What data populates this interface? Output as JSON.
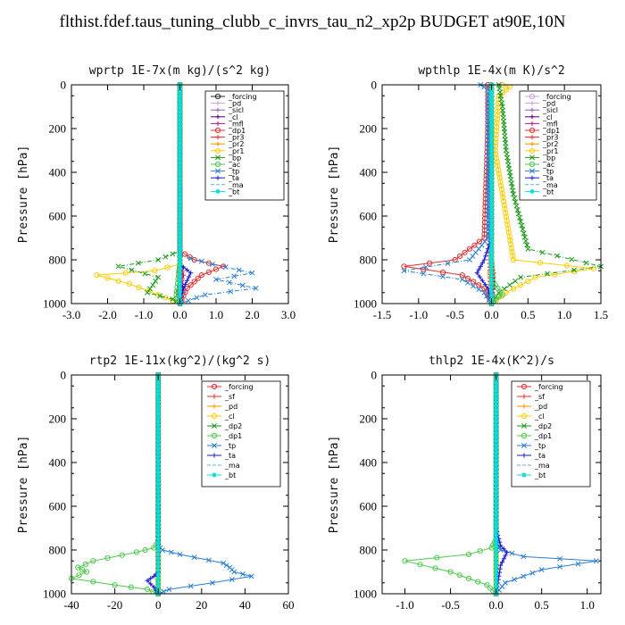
{
  "figure_title": "flthist.fdef.taus_tuning_clubb_c_invrs_tau_n2_xp2p  BUDGET at90E,10N",
  "chart_data": [
    {
      "type": "line",
      "title": "wprtp  1E-7x(m kg)/(s^2 kg)",
      "ylabel": "Pressure [hPa]",
      "xlim": [
        -3,
        3
      ],
      "ylim": [
        1000,
        0
      ],
      "xticks": [
        -3,
        -2,
        -1,
        0,
        1,
        2,
        3
      ],
      "xtick_labels": [
        "-3.0",
        "-2.0",
        "-1.0",
        "0.0",
        "1.0",
        "2.0",
        "3.0"
      ],
      "yticks": [
        0,
        200,
        400,
        600,
        800,
        1000
      ],
      "grid": false,
      "legend_position": "top-right",
      "series": [
        {
          "name": "_forcing",
          "color": "#222222",
          "marker": "o",
          "x": [
            0,
            0
          ],
          "y": [
            0,
            1000
          ]
        },
        {
          "name": "_pd",
          "color": "#c8a0d8",
          "marker": "+",
          "x": [
            0,
            0,
            0
          ],
          "y": [
            0,
            900,
            1000
          ]
        },
        {
          "name": "_sicl",
          "color": "#9b59b6",
          "marker": "+",
          "x": [
            0,
            0,
            0.05,
            0
          ],
          "y": [
            0,
            850,
            920,
            1000
          ]
        },
        {
          "name": "_cl",
          "color": "#4b0082",
          "marker": "+",
          "x": [
            0,
            0,
            0.05,
            0.08,
            0
          ],
          "y": [
            0,
            800,
            880,
            940,
            1000
          ]
        },
        {
          "name": "_mfl",
          "color": "#c71585",
          "marker": "+",
          "x": [
            0,
            0,
            0.1,
            -0.1,
            0
          ],
          "y": [
            0,
            820,
            870,
            950,
            1000
          ]
        },
        {
          "name": "_dp1",
          "color": "#e03030",
          "marker": "o",
          "x": [
            0,
            0,
            0.4,
            1.2,
            0.6,
            0.2,
            0
          ],
          "y": [
            0,
            760,
            800,
            830,
            870,
            930,
            1000
          ]
        },
        {
          "name": "_pr3",
          "color": "#ff2020",
          "marker": "+",
          "x": [
            0,
            0,
            0.05,
            0
          ],
          "y": [
            0,
            800,
            860,
            1000
          ]
        },
        {
          "name": "_pr2",
          "color": "#ff8c00",
          "marker": "+",
          "x": [
            0,
            0,
            -0.05,
            0
          ],
          "y": [
            0,
            800,
            860,
            1000
          ]
        },
        {
          "name": "_pr1",
          "color": "#ffcc00",
          "marker": "o",
          "x": [
            0,
            0,
            -0.7,
            -2.3,
            -1.4,
            -0.6,
            0
          ],
          "y": [
            0,
            820,
            850,
            870,
            910,
            960,
            1000
          ]
        },
        {
          "name": "_bp",
          "color": "#1a9a1a",
          "marker": "x",
          "x": [
            0,
            0,
            -0.6,
            -1.7,
            -0.6,
            -0.9,
            -0.2,
            0
          ],
          "y": [
            0,
            760,
            800,
            830,
            880,
            950,
            980,
            1000
          ]
        },
        {
          "name": "_ac",
          "color": "#4cc94c",
          "marker": "o",
          "x": [
            0,
            0,
            -0.1,
            0
          ],
          "y": [
            0,
            820,
            960,
            1000
          ]
        },
        {
          "name": "_tp",
          "color": "#2a7fd0",
          "marker": "x",
          "x": [
            0,
            0,
            0.9,
            2.0,
            1.0,
            2.1,
            0.7,
            0
          ],
          "y": [
            0,
            780,
            820,
            860,
            890,
            930,
            960,
            1000
          ]
        },
        {
          "name": "_ta",
          "color": "#1a1acc",
          "marker": "+",
          "x": [
            0,
            0,
            0.3,
            0.1,
            0
          ],
          "y": [
            0,
            820,
            860,
            930,
            1000
          ]
        },
        {
          "name": "_ma",
          "color": "#5ab4dc",
          "marker": "-",
          "x": [
            0,
            0,
            0.05,
            0
          ],
          "y": [
            0,
            800,
            900,
            1000
          ]
        },
        {
          "name": "_bt",
          "color": "#00e0e0",
          "marker": "*",
          "x": [
            0,
            0
          ],
          "y": [
            0,
            1000
          ]
        }
      ]
    },
    {
      "type": "line",
      "title": "wpthlp  1E-4x(m K)/s^2",
      "ylabel": "Pressure [hPa]",
      "xlim": [
        -1.5,
        1.5
      ],
      "ylim": [
        1000,
        0
      ],
      "xticks": [
        -1.5,
        -1.0,
        -0.5,
        0,
        0.5,
        1.0,
        1.5
      ],
      "xtick_labels": [
        "-1.5",
        "-1.0",
        "-0.5",
        "0.0",
        "0.5",
        "1.0",
        "1.5"
      ],
      "yticks": [
        0,
        200,
        400,
        600,
        800,
        1000
      ],
      "grid": false,
      "legend_position": "top-right",
      "series": [
        {
          "name": "_forcing",
          "color": "#c8a0d8",
          "marker": "o",
          "x": [
            0,
            0
          ],
          "y": [
            0,
            1000
          ]
        },
        {
          "name": "_pd",
          "color": "#c8a0d8",
          "marker": "+",
          "x": [
            0,
            0
          ],
          "y": [
            0,
            1000
          ]
        },
        {
          "name": "_sicl",
          "color": "#9b59b6",
          "marker": "+",
          "x": [
            0,
            0,
            0.02,
            0
          ],
          "y": [
            0,
            850,
            920,
            1000
          ]
        },
        {
          "name": "_cl",
          "color": "#4b0082",
          "marker": "+",
          "x": [
            0,
            0,
            0.03,
            0
          ],
          "y": [
            0,
            800,
            900,
            1000
          ]
        },
        {
          "name": "_mfl",
          "color": "#c71585",
          "marker": "+",
          "x": [
            -0.02,
            -0.03,
            -0.03,
            0
          ],
          "y": [
            0,
            300,
            800,
            1000
          ]
        },
        {
          "name": "_dp1",
          "color": "#e03030",
          "marker": "o",
          "x": [
            -0.05,
            -0.05,
            -0.1,
            -0.5,
            -1.2,
            -0.4,
            -0.1,
            0
          ],
          "y": [
            0,
            200,
            700,
            800,
            830,
            870,
            930,
            1000
          ]
        },
        {
          "name": "_pr3",
          "color": "#ff2020",
          "marker": "+",
          "x": [
            0,
            0,
            0.03,
            0
          ],
          "y": [
            0,
            800,
            860,
            1000
          ]
        },
        {
          "name": "_pr2",
          "color": "#ff8c00",
          "marker": "+",
          "x": [
            0,
            0,
            -0.03,
            0
          ],
          "y": [
            0,
            800,
            860,
            1000
          ]
        },
        {
          "name": "_pr1",
          "color": "#ffcc00",
          "marker": "o",
          "x": [
            0.15,
            0.25,
            0.1,
            0.05,
            0.3,
            1.4,
            0.6,
            0.2,
            0
          ],
          "y": [
            0,
            10,
            50,
            300,
            800,
            840,
            880,
            950,
            1000
          ]
        },
        {
          "name": "_bp",
          "color": "#1a9a1a",
          "marker": "x",
          "x": [
            0.1,
            0.15,
            0.2,
            0.3,
            0.5,
            1.5,
            0.4,
            0.1,
            0
          ],
          "y": [
            0,
            100,
            300,
            500,
            750,
            830,
            880,
            950,
            1000
          ]
        },
        {
          "name": "_ac",
          "color": "#4cc94c",
          "marker": "o",
          "x": [
            0,
            0,
            0.02,
            0.15,
            0.05,
            0
          ],
          "y": [
            0,
            800,
            900,
            960,
            980,
            1000
          ]
        },
        {
          "name": "_tp",
          "color": "#2a7fd0",
          "marker": "x",
          "x": [
            -0.15,
            -0.05,
            -0.05,
            -0.3,
            -1.2,
            -0.4,
            -0.1,
            0
          ],
          "y": [
            0,
            20,
            700,
            800,
            850,
            890,
            950,
            1000
          ]
        },
        {
          "name": "_ta",
          "color": "#1a1acc",
          "marker": "+",
          "x": [
            0,
            0,
            -0.1,
            -0.2,
            -0.05,
            0
          ],
          "y": [
            0,
            700,
            800,
            860,
            930,
            1000
          ]
        },
        {
          "name": "_ma",
          "color": "#5ab4dc",
          "marker": "-",
          "x": [
            -0.1,
            -0.05,
            0,
            0
          ],
          "y": [
            0,
            30,
            100,
            1000
          ]
        },
        {
          "name": "_bt",
          "color": "#00e0e0",
          "marker": "*",
          "x": [
            0,
            0
          ],
          "y": [
            0,
            1000
          ]
        }
      ]
    },
    {
      "type": "line",
      "title": "rtp2  1E-11x(kg^2)/(kg^2 s)",
      "ylabel": "Pressure [hPa]",
      "xlim": [
        -40,
        60
      ],
      "ylim": [
        1000,
        0
      ],
      "xticks": [
        -40,
        -20,
        0,
        20,
        40,
        60
      ],
      "xtick_labels": [
        "-40",
        "-20",
        "0",
        "20",
        "40",
        "60"
      ],
      "yticks": [
        0,
        200,
        400,
        600,
        800,
        1000
      ],
      "grid": false,
      "legend_position": "top-right",
      "series": [
        {
          "name": "_forcing",
          "color": "#e03030",
          "marker": "o",
          "x": [
            0,
            0
          ],
          "y": [
            0,
            1000
          ]
        },
        {
          "name": "_sf",
          "color": "#ff2020",
          "marker": "+",
          "x": [
            0,
            0
          ],
          "y": [
            0,
            1000
          ]
        },
        {
          "name": "_pd",
          "color": "#ff8c00",
          "marker": "+",
          "x": [
            0,
            0
          ],
          "y": [
            0,
            1000
          ]
        },
        {
          "name": "_cl",
          "color": "#ffcc00",
          "marker": "o",
          "x": [
            0,
            0
          ],
          "y": [
            0,
            1000
          ]
        },
        {
          "name": "_dp2",
          "color": "#1a9a1a",
          "marker": "x",
          "x": [
            0,
            0
          ],
          "y": [
            0,
            1000
          ]
        },
        {
          "name": "_dp1",
          "color": "#4cc94c",
          "marker": "o",
          "x": [
            0,
            0,
            -2,
            -10,
            -30,
            -37,
            -33,
            -40,
            -20,
            -5,
            0
          ],
          "y": [
            0,
            760,
            790,
            810,
            850,
            880,
            900,
            930,
            960,
            980,
            1000
          ]
        },
        {
          "name": "_tp",
          "color": "#2a7fd0",
          "marker": "x",
          "x": [
            0,
            0,
            2,
            10,
            30,
            33,
            35,
            43,
            25,
            5,
            0
          ],
          "y": [
            0,
            780,
            800,
            820,
            860,
            880,
            900,
            920,
            950,
            980,
            1000
          ]
        },
        {
          "name": "_ta",
          "color": "#1a1acc",
          "marker": "+",
          "x": [
            0,
            0,
            -2,
            -5,
            -2,
            0
          ],
          "y": [
            0,
            900,
            920,
            940,
            970,
            1000
          ]
        },
        {
          "name": "_ma",
          "color": "#5ab4dc",
          "marker": "-",
          "x": [
            0,
            0
          ],
          "y": [
            0,
            1000
          ]
        },
        {
          "name": "_bt",
          "color": "#00e0e0",
          "marker": "*",
          "x": [
            0,
            0
          ],
          "y": [
            0,
            1000
          ]
        }
      ]
    },
    {
      "type": "line",
      "title": "thlp2  1E-4x(K^2)/s",
      "ylabel": "Pressure [hPa]",
      "xlim": [
        -1.25,
        1.15
      ],
      "ylim": [
        1000,
        0
      ],
      "xticks": [
        -1.0,
        -0.5,
        0,
        0.5,
        1.0
      ],
      "xtick_labels": [
        "-1.0",
        "-0.5",
        "0.0",
        "0.5",
        "1.0"
      ],
      "yticks": [
        0,
        200,
        400,
        600,
        800,
        1000
      ],
      "grid": false,
      "legend_position": "top-right",
      "series": [
        {
          "name": "_forcing",
          "color": "#e03030",
          "marker": "o",
          "x": [
            0,
            0
          ],
          "y": [
            0,
            1000
          ]
        },
        {
          "name": "_sf",
          "color": "#ff2020",
          "marker": "+",
          "x": [
            0,
            0
          ],
          "y": [
            0,
            1000
          ]
        },
        {
          "name": "_pd",
          "color": "#ff8c00",
          "marker": "+",
          "x": [
            0,
            0
          ],
          "y": [
            0,
            1000
          ]
        },
        {
          "name": "_cl",
          "color": "#ffcc00",
          "marker": "o",
          "x": [
            0,
            0
          ],
          "y": [
            0,
            1000
          ]
        },
        {
          "name": "_dp2",
          "color": "#1a9a1a",
          "marker": "x",
          "x": [
            0,
            0
          ],
          "y": [
            0,
            1000
          ]
        },
        {
          "name": "_dp1",
          "color": "#4cc94c",
          "marker": "o",
          "x": [
            0,
            0,
            -0.05,
            -0.3,
            -1.0,
            -0.5,
            -0.1,
            0
          ],
          "y": [
            0,
            750,
            790,
            820,
            850,
            900,
            960,
            1000
          ]
        },
        {
          "name": "_tp",
          "color": "#2a7fd0",
          "marker": "x",
          "x": [
            0,
            0,
            0.05,
            0.3,
            1.1,
            0.5,
            0.1,
            0
          ],
          "y": [
            0,
            760,
            800,
            830,
            850,
            890,
            950,
            1000
          ]
        },
        {
          "name": "_ta",
          "color": "#1a1acc",
          "marker": "+",
          "x": [
            0,
            0,
            0.05,
            0.12,
            0.05,
            0
          ],
          "y": [
            0,
            700,
            780,
            810,
            870,
            1000
          ]
        },
        {
          "name": "_ma",
          "color": "#5ab4dc",
          "marker": "-",
          "x": [
            0,
            0
          ],
          "y": [
            0,
            1000
          ]
        },
        {
          "name": "_bt",
          "color": "#00e0e0",
          "marker": "*",
          "x": [
            0,
            0
          ],
          "y": [
            0,
            1000
          ]
        }
      ]
    }
  ]
}
